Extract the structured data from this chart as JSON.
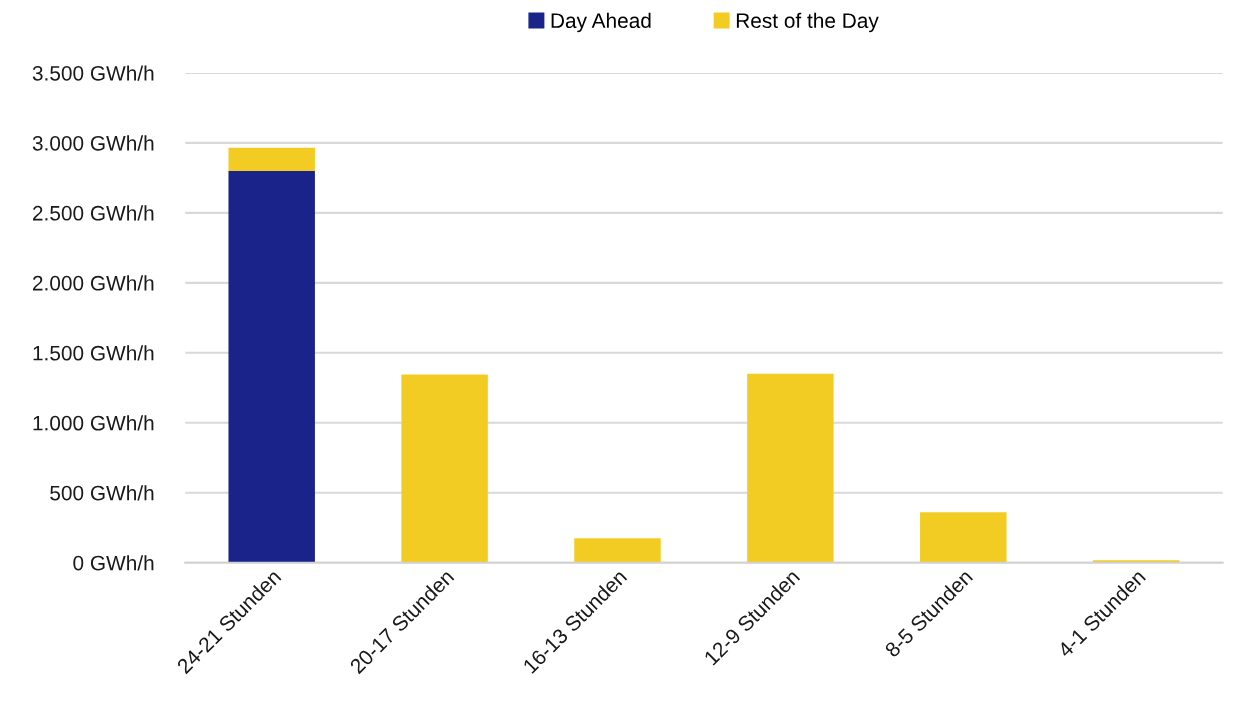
{
  "chart_data": {
    "type": "bar",
    "stacked": true,
    "categories": [
      "24-21 Stunden",
      "20-17 Stunden",
      "16-13 Stunden",
      "12-9 Stunden",
      "8-5 Stunden",
      "4-1 Stunden"
    ],
    "series": [
      {
        "name": "Day Ahead",
        "color": "#1a2389",
        "values": [
          2800,
          0,
          0,
          0,
          0,
          0
        ]
      },
      {
        "name": "Rest of the Day",
        "color": "#f2cc22",
        "values": [
          165,
          1345,
          175,
          1350,
          360,
          18
        ]
      }
    ],
    "ylim": [
      0,
      3500
    ],
    "yticks": [
      {
        "value": 0,
        "label": "0 GWh/h"
      },
      {
        "value": 500,
        "label": "500 GWh/h"
      },
      {
        "value": 1000,
        "label": "1.000 GWh/h"
      },
      {
        "value": 1500,
        "label": "1.500 GWh/h"
      },
      {
        "value": 2000,
        "label": "2.000 GWh/h"
      },
      {
        "value": 2500,
        "label": "2.500 GWh/h"
      },
      {
        "value": 3000,
        "label": "3.000 GWh/h"
      },
      {
        "value": 3500,
        "label": "3.500 GWh/h"
      }
    ],
    "grid": "y",
    "legend": "top"
  }
}
